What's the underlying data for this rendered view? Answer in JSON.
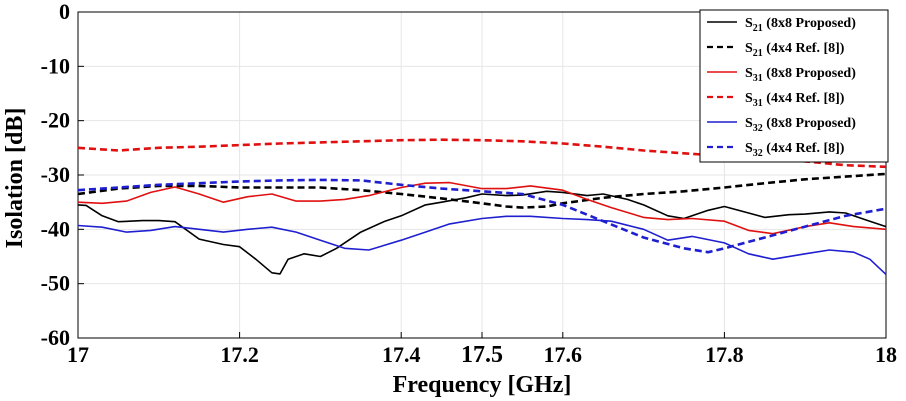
{
  "chart_data": {
    "type": "line",
    "xlabel": "Frequency [GHz]",
    "ylabel": "Isolation [dB]",
    "xlim": [
      17,
      18
    ],
    "ylim": [
      -60,
      0
    ],
    "xticks": [
      "17",
      "17.2",
      "17.4",
      "17.5",
      "17.6",
      "17.8",
      "18"
    ],
    "xtick_values": [
      17,
      17.2,
      17.4,
      17.5,
      17.6,
      17.8,
      18
    ],
    "highlight_tick": "17.5",
    "highlight_color": "#e01010",
    "yticks": [
      "0",
      "-10",
      "-20",
      "-30",
      "-40",
      "-50",
      "-60"
    ],
    "ytick_values": [
      0,
      -10,
      -20,
      -30,
      -40,
      -50,
      -60
    ],
    "grid": true,
    "legend_position": "top-right",
    "series": [
      {
        "name": "S21 (8x8 Proposed)",
        "label_main": "S",
        "label_sub": "21",
        "label_rest": " (8x8 Proposed)",
        "color": "#000000",
        "dash": "solid",
        "x": [
          17.0,
          17.01,
          17.03,
          17.05,
          17.08,
          17.1,
          17.12,
          17.15,
          17.18,
          17.2,
          17.22,
          17.24,
          17.25,
          17.26,
          17.28,
          17.3,
          17.32,
          17.35,
          17.38,
          17.4,
          17.43,
          17.45,
          17.48,
          17.5,
          17.53,
          17.55,
          17.58,
          17.6,
          17.63,
          17.65,
          17.68,
          17.7,
          17.73,
          17.75,
          17.78,
          17.8,
          17.83,
          17.85,
          17.88,
          17.9,
          17.93,
          17.95,
          17.98,
          18.0
        ],
        "y": [
          -35.5,
          -35.6,
          -37.5,
          -38.6,
          -38.4,
          -38.4,
          -38.6,
          -41.8,
          -42.8,
          -43.2,
          -45.5,
          -48.0,
          -48.2,
          -45.5,
          -44.5,
          -45.0,
          -43.5,
          -40.5,
          -38.5,
          -37.5,
          -35.5,
          -35.0,
          -34.2,
          -33.5,
          -33.8,
          -33.7,
          -33.0,
          -33.2,
          -33.8,
          -33.5,
          -34.5,
          -35.5,
          -37.5,
          -38.0,
          -36.5,
          -35.8,
          -37.0,
          -37.8,
          -37.3,
          -37.2,
          -36.8,
          -37.0,
          -38.5,
          -39.5
        ]
      },
      {
        "name": "S21 (4x4 Ref. [8])",
        "label_main": "S",
        "label_sub": "21",
        "label_rest": " (4x4 Ref. [8])",
        "color": "#000000",
        "dash": "dashed",
        "x": [
          17.0,
          17.05,
          17.1,
          17.15,
          17.2,
          17.25,
          17.3,
          17.35,
          17.4,
          17.45,
          17.5,
          17.53,
          17.55,
          17.58,
          17.6,
          17.65,
          17.7,
          17.75,
          17.8,
          17.85,
          17.9,
          17.95,
          18.0
        ],
        "y": [
          -33.5,
          -32.5,
          -32.0,
          -32.0,
          -32.3,
          -32.3,
          -32.3,
          -32.8,
          -33.5,
          -34.3,
          -35.2,
          -35.8,
          -36.0,
          -35.8,
          -35.2,
          -34.2,
          -33.5,
          -33.0,
          -32.3,
          -31.5,
          -30.8,
          -30.3,
          -29.8
        ]
      },
      {
        "name": "S31 (8x8 Proposed)",
        "label_main": "S",
        "label_sub": "31",
        "label_rest": " (8x8 Proposed)",
        "color": "#e01010",
        "dash": "solid",
        "x": [
          17.0,
          17.03,
          17.06,
          17.09,
          17.12,
          17.15,
          17.18,
          17.21,
          17.24,
          17.27,
          17.3,
          17.33,
          17.36,
          17.4,
          17.43,
          17.46,
          17.5,
          17.53,
          17.56,
          17.6,
          17.63,
          17.66,
          17.7,
          17.73,
          17.76,
          17.8,
          17.83,
          17.86,
          17.9,
          17.93,
          17.96,
          18.0
        ],
        "y": [
          -35.0,
          -35.2,
          -34.8,
          -33.2,
          -32.2,
          -33.5,
          -35.0,
          -34.0,
          -33.5,
          -34.8,
          -34.8,
          -34.5,
          -33.8,
          -32.3,
          -31.5,
          -31.4,
          -32.5,
          -32.5,
          -32.0,
          -32.8,
          -34.5,
          -36.0,
          -37.8,
          -38.2,
          -38.0,
          -38.5,
          -40.2,
          -40.8,
          -39.5,
          -38.8,
          -39.5,
          -40.0
        ]
      },
      {
        "name": "S31 (4x4 Ref. [8])",
        "label_main": "S",
        "label_sub": "31",
        "label_rest": " (4x4 Ref. [8])",
        "color": "#e01010",
        "dash": "dashed",
        "x": [
          17.0,
          17.05,
          17.1,
          17.15,
          17.2,
          17.25,
          17.3,
          17.35,
          17.4,
          17.45,
          17.5,
          17.55,
          17.6,
          17.65,
          17.7,
          17.75,
          17.8,
          17.85,
          17.9,
          17.95,
          18.0
        ],
        "y": [
          -25.0,
          -25.5,
          -25.0,
          -24.8,
          -24.5,
          -24.2,
          -24.0,
          -23.8,
          -23.6,
          -23.5,
          -23.6,
          -23.8,
          -24.2,
          -24.8,
          -25.5,
          -26.0,
          -26.5,
          -27.0,
          -27.5,
          -28.2,
          -28.5
        ]
      },
      {
        "name": "S32 (8x8 Proposed)",
        "label_main": "S",
        "label_sub": "32",
        "label_rest": " (8x8 Proposed)",
        "color": "#1f1fd0",
        "dash": "solid",
        "x": [
          17.0,
          17.03,
          17.06,
          17.09,
          17.12,
          17.15,
          17.18,
          17.21,
          17.24,
          17.27,
          17.3,
          17.33,
          17.36,
          17.4,
          17.43,
          17.46,
          17.5,
          17.53,
          17.56,
          17.6,
          17.63,
          17.66,
          17.7,
          17.73,
          17.76,
          17.8,
          17.83,
          17.86,
          17.9,
          17.93,
          17.96,
          17.98,
          18.0
        ],
        "y": [
          -39.3,
          -39.6,
          -40.5,
          -40.2,
          -39.5,
          -40.0,
          -40.5,
          -40.0,
          -39.6,
          -40.5,
          -42.0,
          -43.5,
          -43.8,
          -42.0,
          -40.5,
          -39.0,
          -38.0,
          -37.6,
          -37.6,
          -38.0,
          -38.2,
          -38.5,
          -40.0,
          -42.0,
          -41.3,
          -42.5,
          -44.5,
          -45.5,
          -44.5,
          -43.8,
          -44.2,
          -45.5,
          -48.3
        ]
      },
      {
        "name": "S32 (4x4 Ref. [8])",
        "label_main": "S",
        "label_sub": "32",
        "label_rest": " (4x4 Ref. [8])",
        "color": "#1f1fd0",
        "dash": "dashed",
        "x": [
          17.0,
          17.05,
          17.1,
          17.15,
          17.2,
          17.25,
          17.3,
          17.35,
          17.4,
          17.45,
          17.5,
          17.55,
          17.6,
          17.65,
          17.7,
          17.75,
          17.78,
          17.8,
          17.85,
          17.9,
          17.95,
          18.0
        ],
        "y": [
          -32.8,
          -32.3,
          -31.8,
          -31.5,
          -31.2,
          -31.0,
          -30.9,
          -31.0,
          -31.8,
          -32.5,
          -33.0,
          -33.5,
          -35.5,
          -38.5,
          -41.5,
          -43.5,
          -44.2,
          -43.5,
          -41.5,
          -39.5,
          -37.5,
          -36.2
        ]
      }
    ]
  }
}
